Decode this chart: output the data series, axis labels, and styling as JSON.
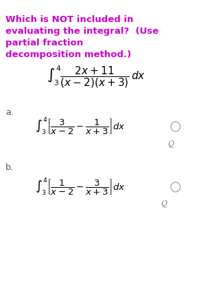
{
  "title_lines": [
    "Which is NOT included in",
    "evaluating the integral?  (Use",
    "partial fraction",
    "decomposition method.)"
  ],
  "title_color": "#cc00cc",
  "bg_color": "#ffffff",
  "main_integral": "$\\int_{3}^{4} \\dfrac{2x + 11}{(x - 2)(x + 3)}\\,dx$",
  "label_a": "a.",
  "label_b": "b.",
  "integral_a": "$\\int_{3}^{4} \\left[\\dfrac{3}{x-2} - \\dfrac{1}{x+3}\\right]dx$",
  "integral_b": "$\\int_{3}^{4} \\left[\\dfrac{1}{x-2} - \\dfrac{3}{x+3}\\right]dx$",
  "text_color": "#000000",
  "label_color": "#555555",
  "radio_color": "#cccccc",
  "search_color": "#888888"
}
